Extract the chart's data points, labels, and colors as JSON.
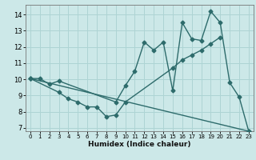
{
  "xlabel": "Humidex (Indice chaleur)",
  "bg_color": "#cce8e8",
  "grid_color": "#aed4d4",
  "line_color": "#2d6b6b",
  "xlim": [
    -0.5,
    23.5
  ],
  "ylim": [
    6.8,
    14.6
  ],
  "yticks": [
    7,
    8,
    9,
    10,
    11,
    12,
    13,
    14
  ],
  "xticks": [
    0,
    1,
    2,
    3,
    4,
    5,
    6,
    7,
    8,
    9,
    10,
    11,
    12,
    13,
    14,
    15,
    16,
    17,
    18,
    19,
    20,
    21,
    22,
    23
  ],
  "line1_x": [
    0,
    1,
    2,
    3,
    9,
    10,
    11,
    12,
    13,
    14,
    15,
    16,
    17,
    18,
    19,
    20,
    21,
    22,
    23
  ],
  "line1_y": [
    10.05,
    10.05,
    9.7,
    9.9,
    8.6,
    9.6,
    10.5,
    12.3,
    11.8,
    12.3,
    9.3,
    13.5,
    12.5,
    12.4,
    14.2,
    13.5,
    9.8,
    8.9,
    6.8
  ],
  "line2_x": [
    0,
    3,
    4,
    5,
    6,
    7,
    8,
    9,
    10,
    15,
    16,
    17,
    18,
    19,
    20
  ],
  "line2_y": [
    10.05,
    9.2,
    8.8,
    8.6,
    8.3,
    8.3,
    7.7,
    7.8,
    8.6,
    10.7,
    11.2,
    11.5,
    11.8,
    12.2,
    12.6
  ],
  "line3_x": [
    0,
    23
  ],
  "line3_y": [
    10.05,
    6.8
  ],
  "marker": "D",
  "markersize": 2.5,
  "linewidth": 1.0
}
